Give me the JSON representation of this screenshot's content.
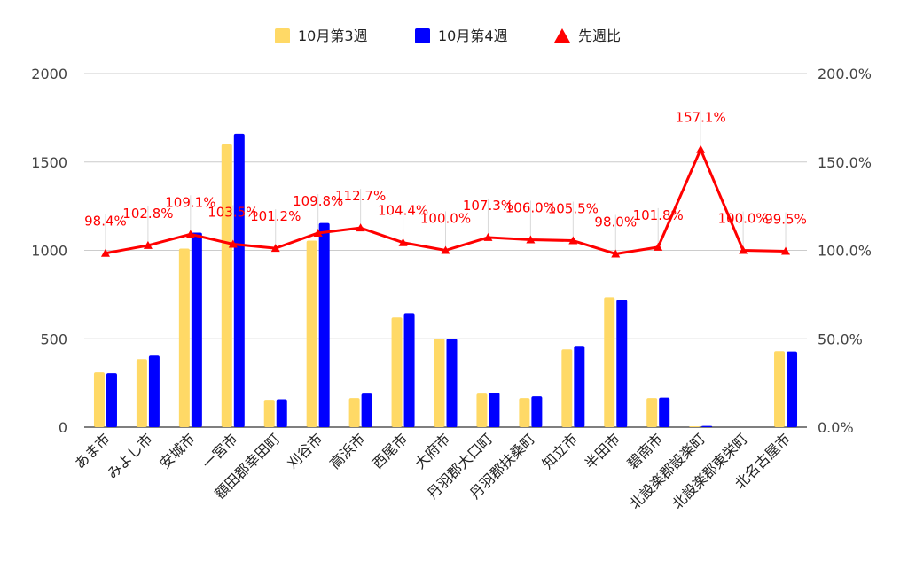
{
  "chart_data": {
    "type": "bar",
    "categories": [
      "あま市",
      "みよし市",
      "安城市",
      "一宮市",
      "額田郡幸田町",
      "刈谷市",
      "高浜市",
      "西尾市",
      "大府市",
      "丹羽郡大口町",
      "丹羽郡扶桑町",
      "知立市",
      "半田市",
      "碧南市",
      "北設楽郡設楽町",
      "北設楽郡東栄町",
      "北名古屋市"
    ],
    "series": [
      {
        "name": "10月第3週",
        "type": "bar",
        "axis": "left",
        "color": "#ffd966",
        "values": [
          310,
          385,
          1010,
          1600,
          155,
          1055,
          165,
          620,
          500,
          190,
          165,
          440,
          735,
          165,
          5,
          0,
          430
        ]
      },
      {
        "name": "10月第4週",
        "type": "bar",
        "axis": "left",
        "color": "#0000ff",
        "values": [
          305,
          405,
          1100,
          1660,
          158,
          1155,
          190,
          645,
          500,
          195,
          175,
          460,
          720,
          167,
          7,
          0,
          428
        ]
      },
      {
        "name": "先週比",
        "type": "line",
        "axis": "right",
        "color": "#ff0000",
        "marker": "triangle",
        "values": [
          98.4,
          102.8,
          109.1,
          103.5,
          101.2,
          109.8,
          112.7,
          104.4,
          100.0,
          107.3,
          106.0,
          105.5,
          98.0,
          101.8,
          157.1,
          100.0,
          99.5
        ]
      }
    ],
    "data_labels": [
      "98.4%",
      "102.8%",
      "109.1%",
      "103.5%",
      "101.2%",
      "109.8%",
      "112.7%",
      "104.4%",
      "100.0%",
      "107.3%",
      "106.0%",
      "105.5%",
      "98.0%",
      "101.8%",
      "157.1%",
      "100.0%",
      "99.5%"
    ],
    "y_left": {
      "min": 0,
      "max": 2000,
      "ticks": [
        0,
        500,
        1000,
        1500,
        2000
      ],
      "tick_labels": [
        "0",
        "500",
        "1000",
        "1500",
        "2000"
      ]
    },
    "y_right": {
      "min": 0,
      "max": 200,
      "ticks": [
        0,
        50,
        100,
        150,
        200
      ],
      "tick_labels": [
        "0.0%",
        "50.0%",
        "100.0%",
        "150.0%",
        "200.0%"
      ]
    },
    "grid": true,
    "legend_position": "top-center"
  }
}
